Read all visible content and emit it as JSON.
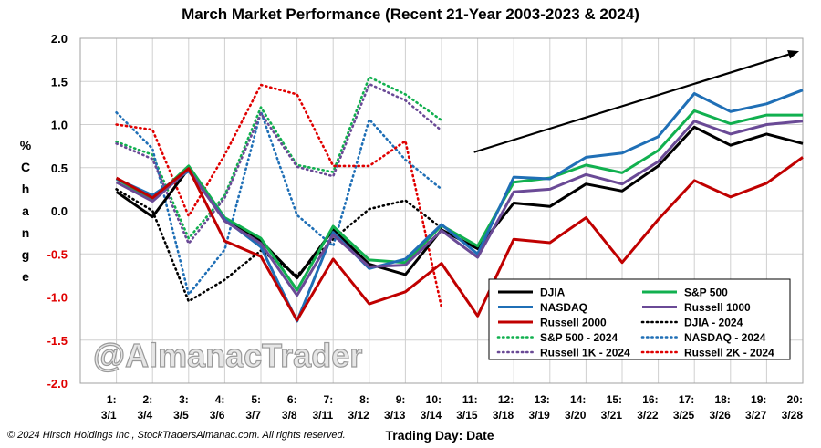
{
  "chart_data": {
    "type": "line",
    "title": "March Market Performance (Recent 21-Year 2003-2023 & 2024)",
    "xlabel": "Trading Day: Date",
    "ylabel": "% Change",
    "ylim": [
      -2.0,
      2.0
    ],
    "yticks": [
      "2.0",
      "1.5",
      "1.0",
      "0.5",
      "0.0",
      "-0.5",
      "-1.0",
      "-1.5",
      "-2.0"
    ],
    "grid": true,
    "legend_position": "bottom-right",
    "categories": [
      {
        "day": "1:",
        "date": "3/1"
      },
      {
        "day": "2:",
        "date": "3/4"
      },
      {
        "day": "3:",
        "date": "3/5"
      },
      {
        "day": "4:",
        "date": "3/6"
      },
      {
        "day": "5:",
        "date": "3/7"
      },
      {
        "day": "6:",
        "date": "3/8"
      },
      {
        "day": "7:",
        "date": "3/11"
      },
      {
        "day": "8:",
        "date": "3/12"
      },
      {
        "day": "9:",
        "date": "3/13"
      },
      {
        "day": "10:",
        "date": "3/14"
      },
      {
        "day": "11:",
        "date": "3/15"
      },
      {
        "day": "12:",
        "date": "3/18"
      },
      {
        "day": "13:",
        "date": "3/19"
      },
      {
        "day": "14:",
        "date": "3/20"
      },
      {
        "day": "15:",
        "date": "3/21"
      },
      {
        "day": "16:",
        "date": "3/22"
      },
      {
        "day": "17:",
        "date": "3/25"
      },
      {
        "day": "18:",
        "date": "3/26"
      },
      {
        "day": "19:",
        "date": "3/27"
      },
      {
        "day": "20:",
        "date": "3/28"
      }
    ],
    "series": [
      {
        "name": "DJIA",
        "color": "#000000",
        "style": "solid",
        "values": [
          0.22,
          -0.07,
          0.49,
          -0.1,
          -0.35,
          -0.78,
          -0.22,
          -0.62,
          -0.74,
          -0.22,
          -0.44,
          0.09,
          0.05,
          0.31,
          0.23,
          0.52,
          0.97,
          0.76,
          0.89,
          0.78
        ]
      },
      {
        "name": "S&P 500",
        "color": "#11b04f",
        "style": "solid",
        "values": [
          0.37,
          0.13,
          0.52,
          -0.08,
          -0.32,
          -0.92,
          -0.18,
          -0.57,
          -0.6,
          -0.17,
          -0.41,
          0.33,
          0.38,
          0.53,
          0.44,
          0.7,
          1.16,
          1.01,
          1.11,
          1.11
        ]
      },
      {
        "name": "NASDAQ",
        "color": "#1f6fb6",
        "style": "solid",
        "values": [
          0.37,
          0.18,
          0.46,
          -0.1,
          -0.42,
          -1.28,
          -0.25,
          -0.67,
          -0.56,
          -0.16,
          -0.5,
          0.39,
          0.37,
          0.62,
          0.67,
          0.86,
          1.36,
          1.15,
          1.24,
          1.4
        ]
      },
      {
        "name": "Russell 1000",
        "color": "#6a4a96",
        "style": "solid",
        "values": [
          0.33,
          0.11,
          0.48,
          -0.12,
          -0.38,
          -0.98,
          -0.28,
          -0.65,
          -0.63,
          -0.23,
          -0.54,
          0.22,
          0.25,
          0.42,
          0.31,
          0.57,
          1.04,
          0.89,
          1.0,
          1.04
        ]
      },
      {
        "name": "Russell 2000",
        "color": "#c00000",
        "style": "solid",
        "values": [
          0.38,
          0.15,
          0.49,
          -0.35,
          -0.53,
          -1.27,
          -0.56,
          -1.08,
          -0.94,
          -0.61,
          -1.22,
          -0.33,
          -0.37,
          -0.08,
          -0.6,
          -0.1,
          0.35,
          0.16,
          0.32,
          0.62
        ]
      },
      {
        "name": "DJIA - 2024",
        "color": "#000000",
        "style": "dotted",
        "values": [
          0.25,
          0.0,
          -1.05,
          -0.8,
          -0.46,
          -0.75,
          -0.33,
          0.02,
          0.12,
          -0.2,
          null,
          null,
          null,
          null,
          null,
          null,
          null,
          null,
          null,
          null
        ]
      },
      {
        "name": "S&P 500 - 2024",
        "color": "#11b04f",
        "style": "dotted",
        "values": [
          0.8,
          0.65,
          -0.32,
          0.18,
          1.2,
          0.53,
          0.45,
          1.55,
          1.35,
          1.05,
          null,
          null,
          null,
          null,
          null,
          null,
          null,
          null,
          null,
          null
        ]
      },
      {
        "name": "NASDAQ - 2024",
        "color": "#1f6fb6",
        "style": "dotted",
        "values": [
          1.14,
          0.72,
          -0.97,
          -0.45,
          1.15,
          -0.05,
          -0.41,
          1.06,
          0.59,
          0.25,
          null,
          null,
          null,
          null,
          null,
          null,
          null,
          null,
          null,
          null
        ]
      },
      {
        "name": "Russell 1K - 2024",
        "color": "#6a4a96",
        "style": "dotted",
        "values": [
          0.78,
          0.6,
          -0.38,
          0.15,
          1.13,
          0.51,
          0.4,
          1.47,
          1.28,
          0.93,
          null,
          null,
          null,
          null,
          null,
          null,
          null,
          null,
          null,
          null
        ]
      },
      {
        "name": "Russell 2K - 2024",
        "color": "#e00000",
        "style": "dotted",
        "values": [
          1.0,
          0.94,
          -0.06,
          0.65,
          1.46,
          1.35,
          0.52,
          0.52,
          0.81,
          -1.12,
          null,
          null,
          null,
          null,
          null,
          null,
          null,
          null,
          null,
          null
        ]
      }
    ],
    "annotation_arrow": {
      "from": {
        "x": 10.9,
        "y": 0.68
      },
      "to": {
        "x": 19.9,
        "y": 1.85
      }
    },
    "watermark": "@AlmanacTrader"
  },
  "footer": {
    "copyright": "© 2024 Hirsch Holdings Inc., StockTradersAlmanac.com. All rights reserved."
  }
}
